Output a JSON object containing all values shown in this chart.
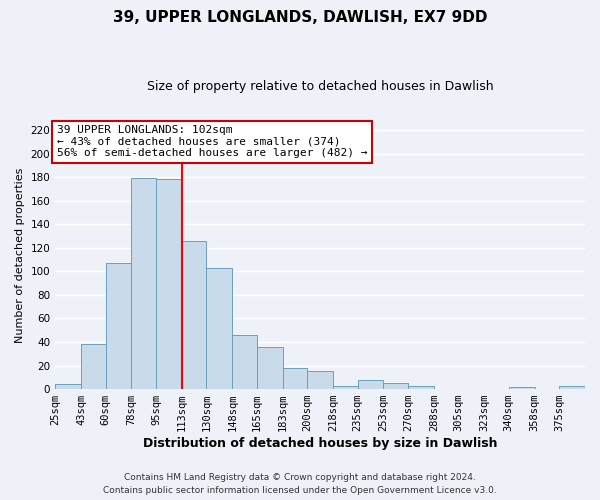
{
  "title": "39, UPPER LONGLANDS, DAWLISH, EX7 9DD",
  "subtitle": "Size of property relative to detached houses in Dawlish",
  "xlabel": "Distribution of detached houses by size in Dawlish",
  "ylabel": "Number of detached properties",
  "bar_color": "#c9daea",
  "bar_edge_color": "#6a9fc0",
  "categories": [
    "25sqm",
    "43sqm",
    "60sqm",
    "78sqm",
    "95sqm",
    "113sqm",
    "130sqm",
    "148sqm",
    "165sqm",
    "183sqm",
    "200sqm",
    "218sqm",
    "235sqm",
    "253sqm",
    "270sqm",
    "288sqm",
    "305sqm",
    "323sqm",
    "340sqm",
    "358sqm",
    "375sqm"
  ],
  "values": [
    4,
    38,
    107,
    179,
    178,
    126,
    103,
    46,
    36,
    18,
    15,
    3,
    8,
    5,
    3,
    0,
    0,
    0,
    2,
    0,
    3
  ],
  "bin_edges": [
    25,
    43,
    60,
    78,
    95,
    113,
    130,
    148,
    165,
    183,
    200,
    218,
    235,
    253,
    270,
    288,
    305,
    323,
    340,
    358,
    375,
    393
  ],
  "redline_x": 113,
  "ylim": [
    0,
    228
  ],
  "yticks": [
    0,
    20,
    40,
    60,
    80,
    100,
    120,
    140,
    160,
    180,
    200,
    220
  ],
  "annotation_title": "39 UPPER LONGLANDS: 102sqm",
  "annotation_line1": "← 43% of detached houses are smaller (374)",
  "annotation_line2": "56% of semi-detached houses are larger (482) →",
  "footer_line1": "Contains HM Land Registry data © Crown copyright and database right 2024.",
  "footer_line2": "Contains public sector information licensed under the Open Government Licence v3.0.",
  "background_color": "#eef2f8",
  "grid_color": "#ffffff",
  "annotation_box_color": "#ffffff",
  "annotation_box_edge": "#cc0000",
  "title_fontsize": 11,
  "subtitle_fontsize": 9,
  "xlabel_fontsize": 9,
  "ylabel_fontsize": 8,
  "tick_fontsize": 7.5,
  "footer_fontsize": 6.5,
  "annotation_fontsize": 8
}
